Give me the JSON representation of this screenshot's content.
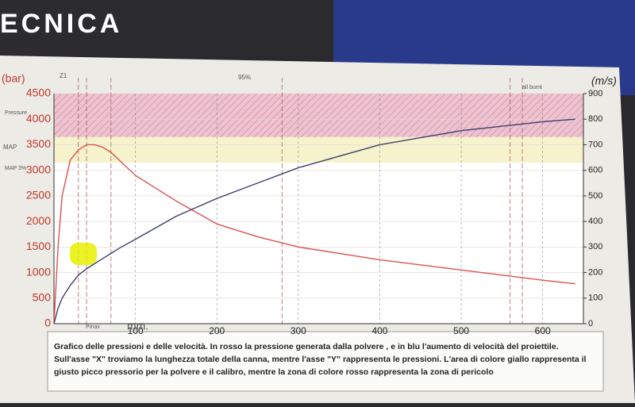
{
  "header": {
    "title": "ECNICA"
  },
  "chart_data": {
    "type": "line",
    "y_label": "(bar)",
    "y2_label": "(m/s)",
    "annotations": [
      "Z1",
      "95%",
      "all burnt",
      "Pmax",
      "mm.",
      "Pressure",
      "MAP",
      "MAP 3%"
    ],
    "x": [
      0,
      5,
      10,
      20,
      30,
      40,
      50,
      60,
      70,
      80,
      100,
      150,
      200,
      250,
      300,
      400,
      500,
      600,
      640
    ],
    "series": [
      {
        "name": "Pressione",
        "color": "#d9534f",
        "values": [
          0,
          1500,
          2500,
          3200,
          3400,
          3500,
          3500,
          3450,
          3350,
          3200,
          2900,
          2400,
          1950,
          1700,
          1500,
          1250,
          1050,
          850,
          780
        ]
      },
      {
        "name": "Velocità",
        "color": "#3b3f6b",
        "axis": "y2",
        "values": [
          0,
          60,
          100,
          150,
          190,
          215,
          235,
          255,
          275,
          295,
          330,
          420,
          490,
          550,
          610,
          700,
          755,
          790,
          800
        ]
      }
    ],
    "bands": [
      {
        "from": 3650,
        "to": 4500,
        "color": "#e8b4c8"
      },
      {
        "from": 3150,
        "to": 3650,
        "color": "#f3efbf"
      }
    ],
    "markers": [
      30,
      40,
      70,
      280,
      560,
      575
    ],
    "xlim": [
      0,
      650
    ],
    "xticks": [
      100,
      200,
      300,
      400,
      500,
      600
    ],
    "ylim": [
      0,
      4500
    ],
    "yticks": [
      0,
      500,
      1000,
      1500,
      2000,
      2500,
      3000,
      3500,
      4000,
      4500
    ],
    "y2lim": [
      0,
      900
    ],
    "y2ticks": [
      0,
      100,
      200,
      300,
      400,
      500,
      600,
      700,
      800,
      900
    ]
  },
  "caption": [
    "Grafico delle pressioni e delle velocità. In rosso la pressione generata dalla polvere , e in blu l'aumento di velocità del proiettile.",
    "Sull'asse \"X\" troviamo la lunghezza totale della canna, mentre l'asse \"Y\" rappresenta le pressioni. L'area di colore giallo rappresenta il",
    "giusto picco pressorio per la polvere e il calibro, mentre la zona di colore rosso rappresenta la zona di pericolo"
  ]
}
